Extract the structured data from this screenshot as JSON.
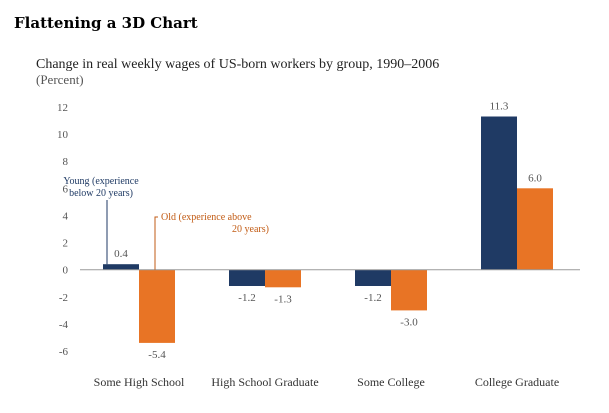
{
  "page": {
    "title": "Flattening a 3D Chart"
  },
  "chart_data": {
    "type": "bar",
    "title": "Change in real weekly wages of US-born workers by group, 1990–2006",
    "subtitle": "(Percent)",
    "categories": [
      "Some High School",
      "High School Graduate",
      "Some College",
      "College Graduate"
    ],
    "series": [
      {
        "name": "Young (experience below 20 years)",
        "color": "#1f3a64",
        "values": [
          0.4,
          -1.2,
          -1.2,
          11.3
        ],
        "labels": [
          "0.4",
          "-1.2",
          "-1.2",
          "11.3"
        ]
      },
      {
        "name": "Old (experience above 20 years)",
        "color": "#e87425",
        "values": [
          -5.4,
          -1.3,
          -3.0,
          6.0
        ],
        "labels": [
          "-5.4",
          "-1.3",
          "-3.0",
          "6.0"
        ]
      }
    ],
    "annotations": {
      "young": [
        "Young (experience",
        "below 20 years)"
      ],
      "old": [
        "Old (experience above",
        "20 years)"
      ]
    },
    "yticks": [
      12,
      10,
      8,
      6,
      4,
      2,
      0,
      -2,
      -4,
      -6
    ],
    "ylim": [
      -6,
      12
    ],
    "grid": false,
    "legend": "inline-annotations",
    "xlabel": "",
    "ylabel": ""
  }
}
